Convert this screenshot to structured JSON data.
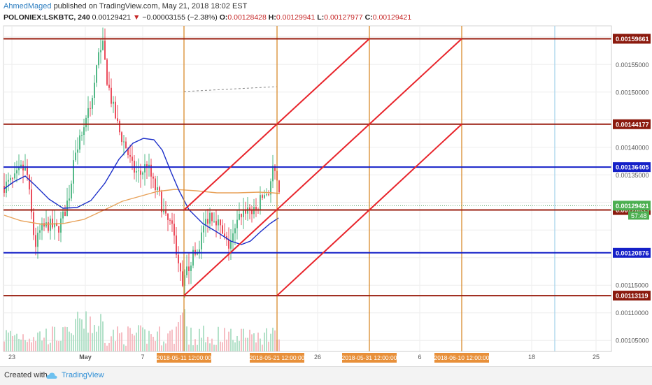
{
  "header": {
    "author": "AhmedMaged",
    "published": "published on TradingView.com, May 21, 2018 18:02 EST",
    "symbol": "POLONIEX:LSKBTC, 240",
    "last": "0.00129421",
    "arrow": "▼",
    "change": "−0.00003155 (−2.38%)",
    "o_label": "O:",
    "o_value": "0.00128428",
    "h_label": "H:",
    "h_value": "0.00129941",
    "l_label": "L:",
    "l_value": "0.00127977",
    "c_label": "C:",
    "c_value": "0.00129421"
  },
  "footer": {
    "created_with": "Created with",
    "brand": "TradingView"
  },
  "chart_data": {
    "type": "candlestick",
    "y_axis": {
      "ylim": [
        0.00103,
        0.00162
      ],
      "ticks": [
        "0.00155000",
        "0.00150000",
        "0.00140000",
        "0.00135000",
        "0.00115000",
        "0.00110000",
        "0.00105000"
      ]
    },
    "x_axis": {
      "ticks": [
        "23",
        "May",
        "7",
        "26",
        "6",
        "18",
        "25"
      ],
      "highlighted_ticks": [
        "2018-05-11 12:00:00",
        "2018-05-21 12:00:00",
        "2018-05-31 12:00:00",
        "2018-06-10 12:00:00"
      ]
    },
    "horizontal_levels": [
      {
        "value": 0.00159661,
        "label": "0.00159661",
        "color": "#8b1a0e",
        "line": "#9a1f10"
      },
      {
        "value": 0.00144177,
        "label": "0.00144177",
        "color": "#8b1a0e",
        "line": "#9a1f10"
      },
      {
        "value": 0.00136405,
        "label": "0.00136405",
        "color": "#1520c8",
        "line": "#1520c8"
      },
      {
        "value": 0.00128633,
        "label": "0.00128633",
        "color": "#8b1a0e",
        "line": "#9a1f10"
      },
      {
        "value": 0.00120876,
        "label": "0.00120876",
        "color": "#1520c8",
        "line": "#1520c8"
      },
      {
        "value": 0.00113119,
        "label": "0.00113119",
        "color": "#8b1a0e",
        "line": "#9a1f10"
      }
    ],
    "current_price": {
      "value": 0.00129421,
      "label": "0.00129421",
      "color": "#4caf50"
    },
    "countdown": {
      "label": "57:48",
      "color": "#4caf50"
    },
    "vertical_lines": [
      {
        "label": "2018-05-11 12:00:00",
        "color": "#d98a2b"
      },
      {
        "label": "2018-05-21 12:00:00",
        "color": "#d98a2b"
      },
      {
        "label": "2018-05-31 12:00:00",
        "color": "#d98a2b"
      },
      {
        "label": "2018-06-10 12:00:00",
        "color": "#d98a2b"
      },
      {
        "label": "",
        "color": "#a8d4ec"
      }
    ],
    "colors": {
      "up": "#53b987",
      "down": "#eb4d5c",
      "ma_blue": "#1c2fc9",
      "ma_orange": "#e8a25a",
      "channel": "#e8242b"
    }
  }
}
